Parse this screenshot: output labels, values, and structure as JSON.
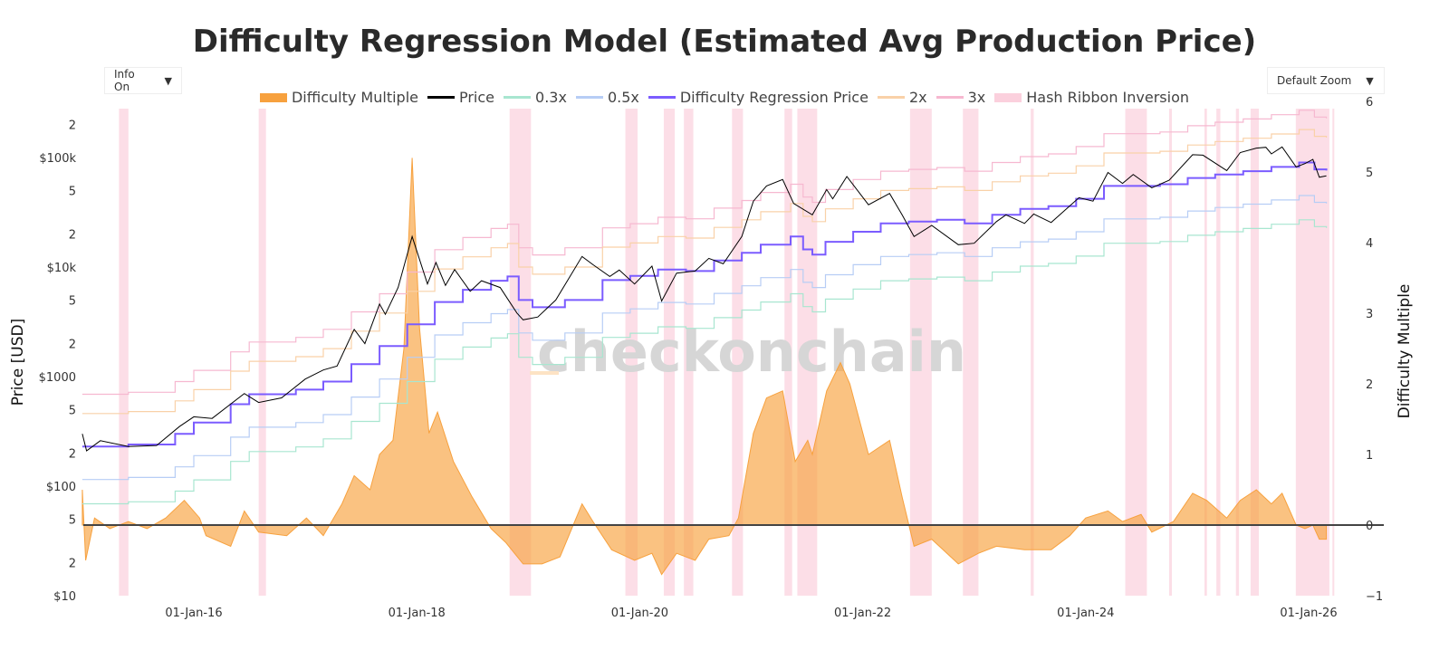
{
  "title": "Difficulty Regression Model (Estimated Avg Production Price)",
  "controls": {
    "info": "Info On",
    "zoom": "Default Zoom",
    "arrow": "▼"
  },
  "watermark": "checkonchain",
  "chart_data": {
    "type": "line",
    "title": "Difficulty Regression Model (Estimated Avg Production Price)",
    "ylabel": "Price [USD]",
    "y2label": "Difficulty Multiple",
    "yscale": "log",
    "ylim": [
      10,
      320000
    ],
    "y2lim": [
      -1,
      6
    ],
    "xlim": [
      "2015-01-01",
      "2026-06-01"
    ],
    "x_ticks": [
      "01-Jan-16",
      "01-Jan-18",
      "01-Jan-20",
      "01-Jan-22",
      "01-Jan-24",
      "01-Jan-26"
    ],
    "y_ticks": [
      {
        "v": 10,
        "l": "$10"
      },
      {
        "v": 20,
        "l": "2"
      },
      {
        "v": 50,
        "l": "5"
      },
      {
        "v": 100,
        "l": "$100"
      },
      {
        "v": 200,
        "l": "2"
      },
      {
        "v": 500,
        "l": "5"
      },
      {
        "v": 1000,
        "l": "$1000"
      },
      {
        "v": 2000,
        "l": "2"
      },
      {
        "v": 5000,
        "l": "5"
      },
      {
        "v": 10000,
        "l": "$10k"
      },
      {
        "v": 20000,
        "l": "2"
      },
      {
        "v": 50000,
        "l": "5"
      },
      {
        "v": 100000,
        "l": "$100k"
      },
      {
        "v": 200000,
        "l": "2"
      }
    ],
    "y2_ticks": [
      "−1",
      "0",
      "1",
      "2",
      "3",
      "4",
      "5",
      "6"
    ],
    "legend_position": "top",
    "grid": false,
    "colors": {
      "multiple": "#f7a13e",
      "price": "#000000",
      "x03": "#a8e6d0",
      "x05": "#b7cdf5",
      "drp": "#7b5cff",
      "x2": "#f9d1a8",
      "x3": "#f6b8d0",
      "ribbon": "#fbd0dd"
    },
    "legend": [
      "Difficulty Multiple",
      "Price",
      "0.3x",
      "0.5x",
      "Difficulty Regression Price",
      "2x",
      "3x",
      "Hash Ribbon Inversion"
    ],
    "price": [
      [
        "2015-01-01",
        300
      ],
      [
        "2015-01-15",
        210
      ],
      [
        "2015-03-01",
        260
      ],
      [
        "2015-06-01",
        230
      ],
      [
        "2015-09-01",
        235
      ],
      [
        "2015-11-15",
        350
      ],
      [
        "2016-01-01",
        430
      ],
      [
        "2016-03-01",
        415
      ],
      [
        "2016-06-15",
        700
      ],
      [
        "2016-08-01",
        580
      ],
      [
        "2016-10-15",
        640
      ],
      [
        "2017-01-01",
        950
      ],
      [
        "2017-03-01",
        1150
      ],
      [
        "2017-04-15",
        1250
      ],
      [
        "2017-06-10",
        2700
      ],
      [
        "2017-07-15",
        2000
      ],
      [
        "2017-09-01",
        4600
      ],
      [
        "2017-09-20",
        3700
      ],
      [
        "2017-11-01",
        6500
      ],
      [
        "2017-12-17",
        19000
      ],
      [
        "2018-02-05",
        7000
      ],
      [
        "2018-03-05",
        11000
      ],
      [
        "2018-04-05",
        6800
      ],
      [
        "2018-05-05",
        9500
      ],
      [
        "2018-06-25",
        6000
      ],
      [
        "2018-08-01",
        7500
      ],
      [
        "2018-10-01",
        6500
      ],
      [
        "2018-11-25",
        3800
      ],
      [
        "2018-12-15",
        3300
      ],
      [
        "2019-02-01",
        3500
      ],
      [
        "2019-04-01",
        5000
      ],
      [
        "2019-06-26",
        12500
      ],
      [
        "2019-08-01",
        10500
      ],
      [
        "2019-09-25",
        8200
      ],
      [
        "2019-10-26",
        9400
      ],
      [
        "2019-12-15",
        7000
      ],
      [
        "2020-02-10",
        10200
      ],
      [
        "2020-03-13",
        4900
      ],
      [
        "2020-05-01",
        8800
      ],
      [
        "2020-07-01",
        9200
      ],
      [
        "2020-08-15",
        12000
      ],
      [
        "2020-10-01",
        10700
      ],
      [
        "2020-12-01",
        19000
      ],
      [
        "2021-01-08",
        40000
      ],
      [
        "2021-02-20",
        55000
      ],
      [
        "2021-04-14",
        63000
      ],
      [
        "2021-05-20",
        38000
      ],
      [
        "2021-07-20",
        30000
      ],
      [
        "2021-09-05",
        51000
      ],
      [
        "2021-09-25",
        42000
      ],
      [
        "2021-11-10",
        67000
      ],
      [
        "2022-01-20",
        37000
      ],
      [
        "2022-03-30",
        47000
      ],
      [
        "2022-05-10",
        30000
      ],
      [
        "2022-06-18",
        19000
      ],
      [
        "2022-08-15",
        24000
      ],
      [
        "2022-11-10",
        16000
      ],
      [
        "2023-01-01",
        16500
      ],
      [
        "2023-03-15",
        26000
      ],
      [
        "2023-04-15",
        30000
      ],
      [
        "2023-06-15",
        25000
      ],
      [
        "2023-07-15",
        30500
      ],
      [
        "2023-09-10",
        25500
      ],
      [
        "2023-12-10",
        43000
      ],
      [
        "2024-01-25",
        40000
      ],
      [
        "2024-03-14",
        73000
      ],
      [
        "2024-05-01",
        58000
      ],
      [
        "2024-06-05",
        70000
      ],
      [
        "2024-08-05",
        53000
      ],
      [
        "2024-10-01",
        62000
      ],
      [
        "2024-12-17",
        106000
      ],
      [
        "2025-01-20",
        105000
      ],
      [
        "2025-04-08",
        76000
      ],
      [
        "2025-05-22",
        111000
      ],
      [
        "2025-07-14",
        122000
      ],
      [
        "2025-08-14",
        124000
      ],
      [
        "2025-09-01",
        108000
      ],
      [
        "2025-10-06",
        125000
      ],
      [
        "2025-11-21",
        82000
      ],
      [
        "2025-12-20",
        88000
      ],
      [
        "2026-01-15",
        96000
      ],
      [
        "2026-02-05",
        66000
      ],
      [
        "2026-02-28",
        68000
      ]
    ],
    "difficulty_regression_price": [
      [
        "2015-01-01",
        230
      ],
      [
        "2015-06-01",
        240
      ],
      [
        "2015-11-01",
        300
      ],
      [
        "2016-01-01",
        380
      ],
      [
        "2016-05-01",
        560
      ],
      [
        "2016-07-01",
        690
      ],
      [
        "2016-12-01",
        760
      ],
      [
        "2017-03-01",
        900
      ],
      [
        "2017-06-01",
        1300
      ],
      [
        "2017-09-01",
        1900
      ],
      [
        "2017-12-01",
        3000
      ],
      [
        "2018-03-01",
        4800
      ],
      [
        "2018-06-01",
        6200
      ],
      [
        "2018-09-01",
        7500
      ],
      [
        "2018-10-25",
        8200
      ],
      [
        "2018-12-01",
        5000
      ],
      [
        "2019-01-15",
        4300
      ],
      [
        "2019-05-01",
        5000
      ],
      [
        "2019-09-01",
        7600
      ],
      [
        "2019-12-01",
        8300
      ],
      [
        "2020-03-01",
        9500
      ],
      [
        "2020-06-01",
        9200
      ],
      [
        "2020-09-01",
        11500
      ],
      [
        "2020-12-01",
        13500
      ],
      [
        "2021-02-01",
        16000
      ],
      [
        "2021-05-10",
        19000
      ],
      [
        "2021-06-20",
        14500
      ],
      [
        "2021-07-20",
        13000
      ],
      [
        "2021-09-01",
        17000
      ],
      [
        "2021-12-01",
        21000
      ],
      [
        "2022-03-01",
        25000
      ],
      [
        "2022-06-01",
        26000
      ],
      [
        "2022-09-01",
        27000
      ],
      [
        "2022-12-01",
        25000
      ],
      [
        "2023-03-01",
        30000
      ],
      [
        "2023-06-01",
        34000
      ],
      [
        "2023-09-01",
        36000
      ],
      [
        "2023-12-01",
        42000
      ],
      [
        "2024-03-01",
        55000
      ],
      [
        "2024-06-01",
        55000
      ],
      [
        "2024-09-01",
        57000
      ],
      [
        "2024-12-01",
        65000
      ],
      [
        "2025-03-01",
        70000
      ],
      [
        "2025-06-01",
        75000
      ],
      [
        "2025-09-01",
        82000
      ],
      [
        "2025-12-01",
        90000
      ],
      [
        "2026-01-20",
        78000
      ],
      [
        "2026-02-28",
        76000
      ]
    ],
    "bands": {
      "0.3x": 0.3,
      "0.5x": 0.5,
      "2x": 2,
      "3x": 3
    },
    "difficulty_multiple": [
      [
        "2015-01-01",
        0.5
      ],
      [
        "2015-01-12",
        -0.5
      ],
      [
        "2015-02-10",
        0.1
      ],
      [
        "2015-04-01",
        -0.05
      ],
      [
        "2015-06-01",
        0.05
      ],
      [
        "2015-08-01",
        -0.05
      ],
      [
        "2015-10-01",
        0.1
      ],
      [
        "2015-12-01",
        0.35
      ],
      [
        "2016-01-20",
        0.1
      ],
      [
        "2016-02-10",
        -0.15
      ],
      [
        "2016-05-01",
        -0.3
      ],
      [
        "2016-06-15",
        0.2
      ],
      [
        "2016-08-01",
        -0.1
      ],
      [
        "2016-11-01",
        -0.15
      ],
      [
        "2017-01-05",
        0.1
      ],
      [
        "2017-03-01",
        -0.15
      ],
      [
        "2017-05-01",
        0.3
      ],
      [
        "2017-06-10",
        0.7
      ],
      [
        "2017-08-01",
        0.5
      ],
      [
        "2017-09-01",
        1.0
      ],
      [
        "2017-10-15",
        1.2
      ],
      [
        "2017-11-20",
        2.5
      ],
      [
        "2017-12-17",
        5.2
      ],
      [
        "2018-01-10",
        2.8
      ],
      [
        "2018-02-10",
        1.3
      ],
      [
        "2018-03-10",
        1.6
      ],
      [
        "2018-05-01",
        0.9
      ],
      [
        "2018-07-01",
        0.4
      ],
      [
        "2018-09-01",
        -0.05
      ],
      [
        "2018-10-20",
        -0.25
      ],
      [
        "2018-12-15",
        -0.55
      ],
      [
        "2019-02-15",
        -0.55
      ],
      [
        "2019-04-15",
        -0.45
      ],
      [
        "2019-06-26",
        0.3
      ],
      [
        "2019-08-01",
        0.05
      ],
      [
        "2019-10-01",
        -0.35
      ],
      [
        "2019-12-15",
        -0.5
      ],
      [
        "2020-02-10",
        -0.4
      ],
      [
        "2020-03-13",
        -0.7
      ],
      [
        "2020-05-01",
        -0.4
      ],
      [
        "2020-07-01",
        -0.5
      ],
      [
        "2020-08-15",
        -0.2
      ],
      [
        "2020-10-20",
        -0.15
      ],
      [
        "2020-11-20",
        0.1
      ],
      [
        "2021-01-08",
        1.3
      ],
      [
        "2021-02-20",
        1.8
      ],
      [
        "2021-04-14",
        1.9
      ],
      [
        "2021-05-25",
        0.9
      ],
      [
        "2021-07-05",
        1.2
      ],
      [
        "2021-07-20",
        1.0
      ],
      [
        "2021-09-05",
        1.9
      ],
      [
        "2021-10-20",
        2.3
      ],
      [
        "2021-11-20",
        2.0
      ],
      [
        "2022-01-20",
        1.0
      ],
      [
        "2022-03-30",
        1.2
      ],
      [
        "2022-05-10",
        0.4
      ],
      [
        "2022-06-18",
        -0.3
      ],
      [
        "2022-08-15",
        -0.2
      ],
      [
        "2022-11-10",
        -0.55
      ],
      [
        "2023-01-15",
        -0.4
      ],
      [
        "2023-03-15",
        -0.3
      ],
      [
        "2023-06-15",
        -0.35
      ],
      [
        "2023-09-10",
        -0.35
      ],
      [
        "2023-11-10",
        -0.15
      ],
      [
        "2024-01-01",
        0.1
      ],
      [
        "2024-03-14",
        0.2
      ],
      [
        "2024-05-01",
        0.05
      ],
      [
        "2024-07-01",
        0.15
      ],
      [
        "2024-08-05",
        -0.1
      ],
      [
        "2024-10-15",
        0.05
      ],
      [
        "2024-12-17",
        0.45
      ],
      [
        "2025-02-01",
        0.35
      ],
      [
        "2025-04-08",
        0.1
      ],
      [
        "2025-05-22",
        0.35
      ],
      [
        "2025-07-14",
        0.5
      ],
      [
        "2025-09-01",
        0.3
      ],
      [
        "2025-10-06",
        0.45
      ],
      [
        "2025-11-21",
        0.0
      ],
      [
        "2025-12-20",
        -0.05
      ],
      [
        "2026-01-15",
        0.0
      ],
      [
        "2026-02-05",
        -0.2
      ],
      [
        "2026-02-28",
        -0.2
      ]
    ],
    "hash_ribbon_inversions": [
      [
        "2015-05-01",
        "2015-06-01"
      ],
      [
        "2016-08-01",
        "2016-08-25"
      ],
      [
        "2018-11-01",
        "2019-01-10"
      ],
      [
        "2019-11-15",
        "2019-12-25"
      ],
      [
        "2020-03-20",
        "2020-04-25"
      ],
      [
        "2020-05-25",
        "2020-06-25"
      ],
      [
        "2020-10-30",
        "2020-12-05"
      ],
      [
        "2021-04-20",
        "2021-05-15"
      ],
      [
        "2021-06-01",
        "2021-08-05"
      ],
      [
        "2022-06-05",
        "2022-08-15"
      ],
      [
        "2022-11-25",
        "2023-01-15"
      ],
      [
        "2023-07-05",
        "2023-07-15"
      ],
      [
        "2024-05-10",
        "2024-07-20"
      ],
      [
        "2024-10-01",
        "2024-10-10"
      ],
      [
        "2025-01-25",
        "2025-02-02"
      ],
      [
        "2025-03-05",
        "2025-03-18"
      ],
      [
        "2025-05-08",
        "2025-05-18"
      ],
      [
        "2025-06-25",
        "2025-07-22"
      ],
      [
        "2025-11-20",
        "2026-03-10"
      ],
      [
        "2026-03-20",
        "2026-03-26"
      ]
    ]
  }
}
